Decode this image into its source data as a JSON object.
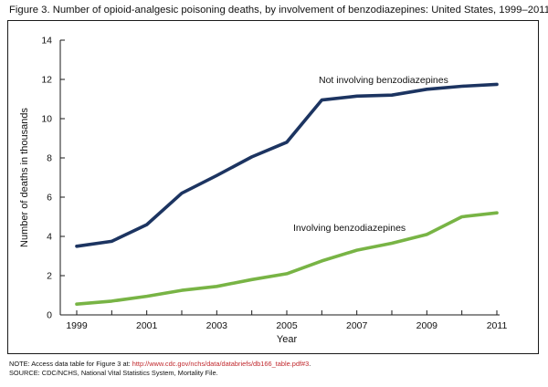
{
  "figure": {
    "title": "Figure 3. Number of opioid-analgesic poisoning deaths, by involvement of benzodiazepines: United States, 1999–2011"
  },
  "notes": {
    "note_prefix": "NOTE: Access data table for Figure 3 at: ",
    "note_url": "http://www.cdc.gov/nchs/data/databriefs/db166_table.pdf#3",
    "note_suffix": ".",
    "source": "SOURCE: CDC/NCHS, National Vital Statistics System, Mortality File."
  },
  "chart_data": {
    "type": "line",
    "title": "Figure 3. Number of opioid-analgesic poisoning deaths, by involvement of benzodiazepines: United States, 1999–2011",
    "xlabel": "Year",
    "ylabel": "Number of deaths in thousands",
    "x": [
      1999,
      2000,
      2001,
      2002,
      2003,
      2004,
      2005,
      2006,
      2007,
      2008,
      2009,
      2010,
      2011
    ],
    "x_ticks": [
      1999,
      2001,
      2003,
      2005,
      2007,
      2009,
      2011
    ],
    "y_ticks": [
      0,
      2,
      4,
      6,
      8,
      10,
      12,
      14
    ],
    "xlim": [
      1999,
      2011
    ],
    "ylim": [
      0,
      14
    ],
    "grid": false,
    "legend": "inline labels",
    "series": [
      {
        "name": "Not involving benzodiazepines",
        "color": "#1c3461",
        "values": [
          3.5,
          3.75,
          4.6,
          6.2,
          7.1,
          8.05,
          8.8,
          10.95,
          11.15,
          11.2,
          11.5,
          11.65,
          11.75
        ]
      },
      {
        "name": "Involving benzodiazepines",
        "color": "#78b445",
        "values": [
          0.55,
          0.7,
          0.95,
          1.25,
          1.45,
          1.8,
          2.1,
          2.75,
          3.3,
          3.65,
          4.1,
          5.0,
          5.2
        ]
      }
    ]
  }
}
